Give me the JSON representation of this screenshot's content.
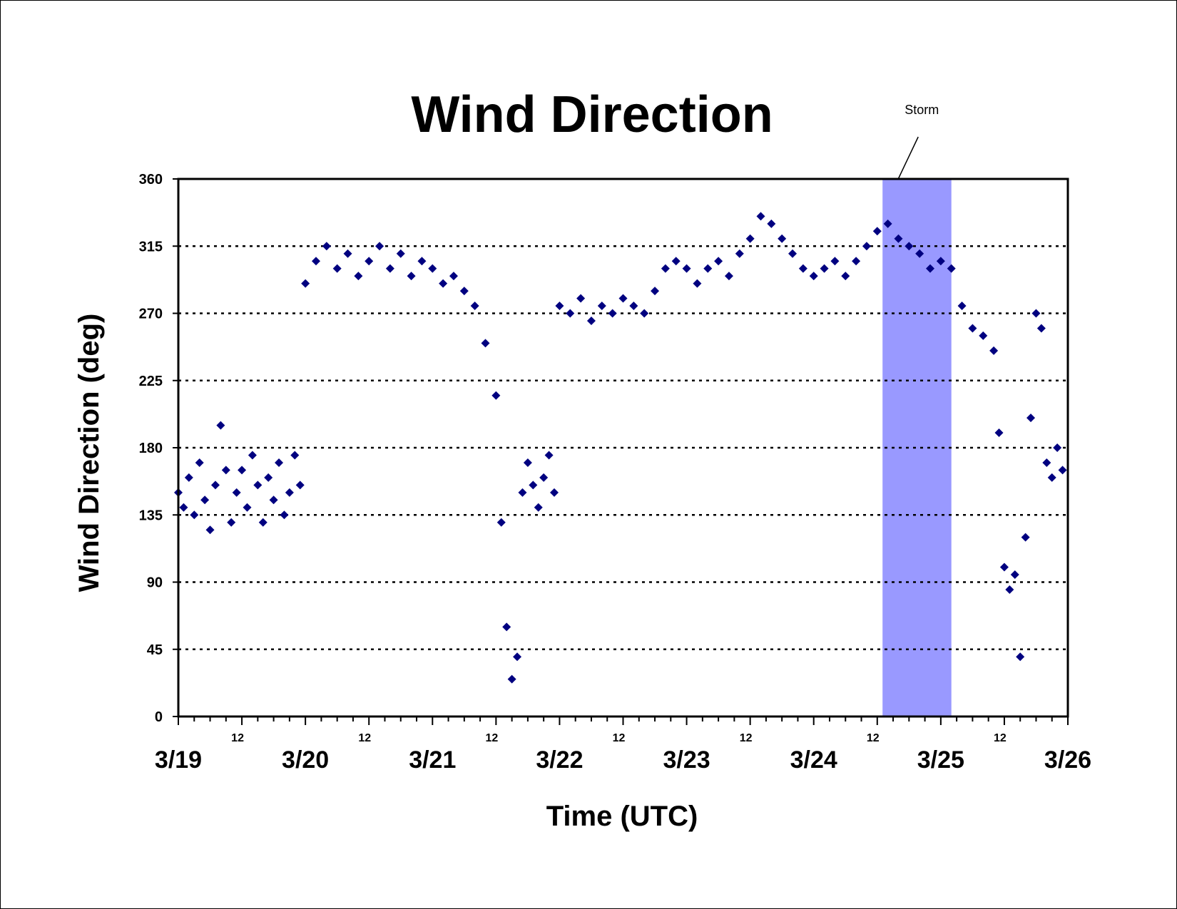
{
  "chart_data": {
    "type": "scatter",
    "title": "Wind Direction",
    "xlabel": "Time (UTC)",
    "ylabel": "Wind Direction (deg)",
    "ylim": [
      0,
      360
    ],
    "yticks": [
      0,
      45,
      90,
      135,
      180,
      225,
      270,
      315,
      360
    ],
    "xlim": [
      "3/19 00:00",
      "3/26 00:00"
    ],
    "x_major_ticks": [
      "3/19",
      "3/20",
      "3/21",
      "3/22",
      "3/23",
      "3/24",
      "3/25",
      "3/26"
    ],
    "x_minor_tick_label": "12",
    "grid": "horizontal dotted",
    "marker": "diamond",
    "marker_color": "#000080",
    "highlight_color": "#9999ff",
    "annotation": {
      "text": "Storm",
      "span": [
        "3/24 13:00",
        "3/25 02:00"
      ]
    },
    "series": [
      {
        "points": [
          [
            "3/19 00:00",
            150
          ],
          [
            "3/19 01:00",
            140
          ],
          [
            "3/19 02:00",
            160
          ],
          [
            "3/19 03:00",
            135
          ],
          [
            "3/19 04:00",
            170
          ],
          [
            "3/19 05:00",
            145
          ],
          [
            "3/19 06:00",
            125
          ],
          [
            "3/19 07:00",
            155
          ],
          [
            "3/19 08:00",
            195
          ],
          [
            "3/19 09:00",
            165
          ],
          [
            "3/19 10:00",
            130
          ],
          [
            "3/19 11:00",
            150
          ],
          [
            "3/19 12:00",
            165
          ],
          [
            "3/19 13:00",
            140
          ],
          [
            "3/19 14:00",
            175
          ],
          [
            "3/19 15:00",
            155
          ],
          [
            "3/19 16:00",
            130
          ],
          [
            "3/19 17:00",
            160
          ],
          [
            "3/19 18:00",
            145
          ],
          [
            "3/19 19:00",
            170
          ],
          [
            "3/19 20:00",
            135
          ],
          [
            "3/19 21:00",
            150
          ],
          [
            "3/19 22:00",
            175
          ],
          [
            "3/19 23:00",
            155
          ],
          [
            "3/20 00:00",
            290
          ],
          [
            "3/20 02:00",
            305
          ],
          [
            "3/20 04:00",
            315
          ],
          [
            "3/20 06:00",
            300
          ],
          [
            "3/20 08:00",
            310
          ],
          [
            "3/20 10:00",
            295
          ],
          [
            "3/20 12:00",
            305
          ],
          [
            "3/20 14:00",
            315
          ],
          [
            "3/20 16:00",
            300
          ],
          [
            "3/20 18:00",
            310
          ],
          [
            "3/20 20:00",
            295
          ],
          [
            "3/20 22:00",
            305
          ],
          [
            "3/21 00:00",
            300
          ],
          [
            "3/21 02:00",
            290
          ],
          [
            "3/21 04:00",
            295
          ],
          [
            "3/21 06:00",
            285
          ],
          [
            "3/21 08:00",
            275
          ],
          [
            "3/21 10:00",
            250
          ],
          [
            "3/21 12:00",
            215
          ],
          [
            "3/21 13:00",
            130
          ],
          [
            "3/21 14:00",
            60
          ],
          [
            "3/21 15:00",
            25
          ],
          [
            "3/21 16:00",
            40
          ],
          [
            "3/21 17:00",
            150
          ],
          [
            "3/21 18:00",
            170
          ],
          [
            "3/21 19:00",
            155
          ],
          [
            "3/21 20:00",
            140
          ],
          [
            "3/21 21:00",
            160
          ],
          [
            "3/21 22:00",
            175
          ],
          [
            "3/21 23:00",
            150
          ],
          [
            "3/22 00:00",
            275
          ],
          [
            "3/22 02:00",
            270
          ],
          [
            "3/22 04:00",
            280
          ],
          [
            "3/22 06:00",
            265
          ],
          [
            "3/22 08:00",
            275
          ],
          [
            "3/22 10:00",
            270
          ],
          [
            "3/22 12:00",
            280
          ],
          [
            "3/22 14:00",
            275
          ],
          [
            "3/22 16:00",
            270
          ],
          [
            "3/22 18:00",
            285
          ],
          [
            "3/22 20:00",
            300
          ],
          [
            "3/22 22:00",
            305
          ],
          [
            "3/23 00:00",
            300
          ],
          [
            "3/23 02:00",
            290
          ],
          [
            "3/23 04:00",
            300
          ],
          [
            "3/23 06:00",
            305
          ],
          [
            "3/23 08:00",
            295
          ],
          [
            "3/23 10:00",
            310
          ],
          [
            "3/23 12:00",
            320
          ],
          [
            "3/23 14:00",
            335
          ],
          [
            "3/23 16:00",
            330
          ],
          [
            "3/23 18:00",
            320
          ],
          [
            "3/23 20:00",
            310
          ],
          [
            "3/23 22:00",
            300
          ],
          [
            "3/24 00:00",
            295
          ],
          [
            "3/24 02:00",
            300
          ],
          [
            "3/24 04:00",
            305
          ],
          [
            "3/24 06:00",
            295
          ],
          [
            "3/24 08:00",
            305
          ],
          [
            "3/24 10:00",
            315
          ],
          [
            "3/24 12:00",
            325
          ],
          [
            "3/24 14:00",
            330
          ],
          [
            "3/24 16:00",
            320
          ],
          [
            "3/24 18:00",
            315
          ],
          [
            "3/24 20:00",
            310
          ],
          [
            "3/24 22:00",
            300
          ],
          [
            "3/25 00:00",
            305
          ],
          [
            "3/25 02:00",
            300
          ],
          [
            "3/25 04:00",
            275
          ],
          [
            "3/25 06:00",
            260
          ],
          [
            "3/25 08:00",
            255
          ],
          [
            "3/25 10:00",
            245
          ],
          [
            "3/25 11:00",
            190
          ],
          [
            "3/25 12:00",
            100
          ],
          [
            "3/25 13:00",
            85
          ],
          [
            "3/25 14:00",
            95
          ],
          [
            "3/25 15:00",
            40
          ],
          [
            "3/25 16:00",
            120
          ],
          [
            "3/25 17:00",
            200
          ],
          [
            "3/25 18:00",
            270
          ],
          [
            "3/25 19:00",
            260
          ],
          [
            "3/25 20:00",
            170
          ],
          [
            "3/25 21:00",
            160
          ],
          [
            "3/25 22:00",
            180
          ],
          [
            "3/25 23:00",
            165
          ]
        ]
      }
    ]
  }
}
